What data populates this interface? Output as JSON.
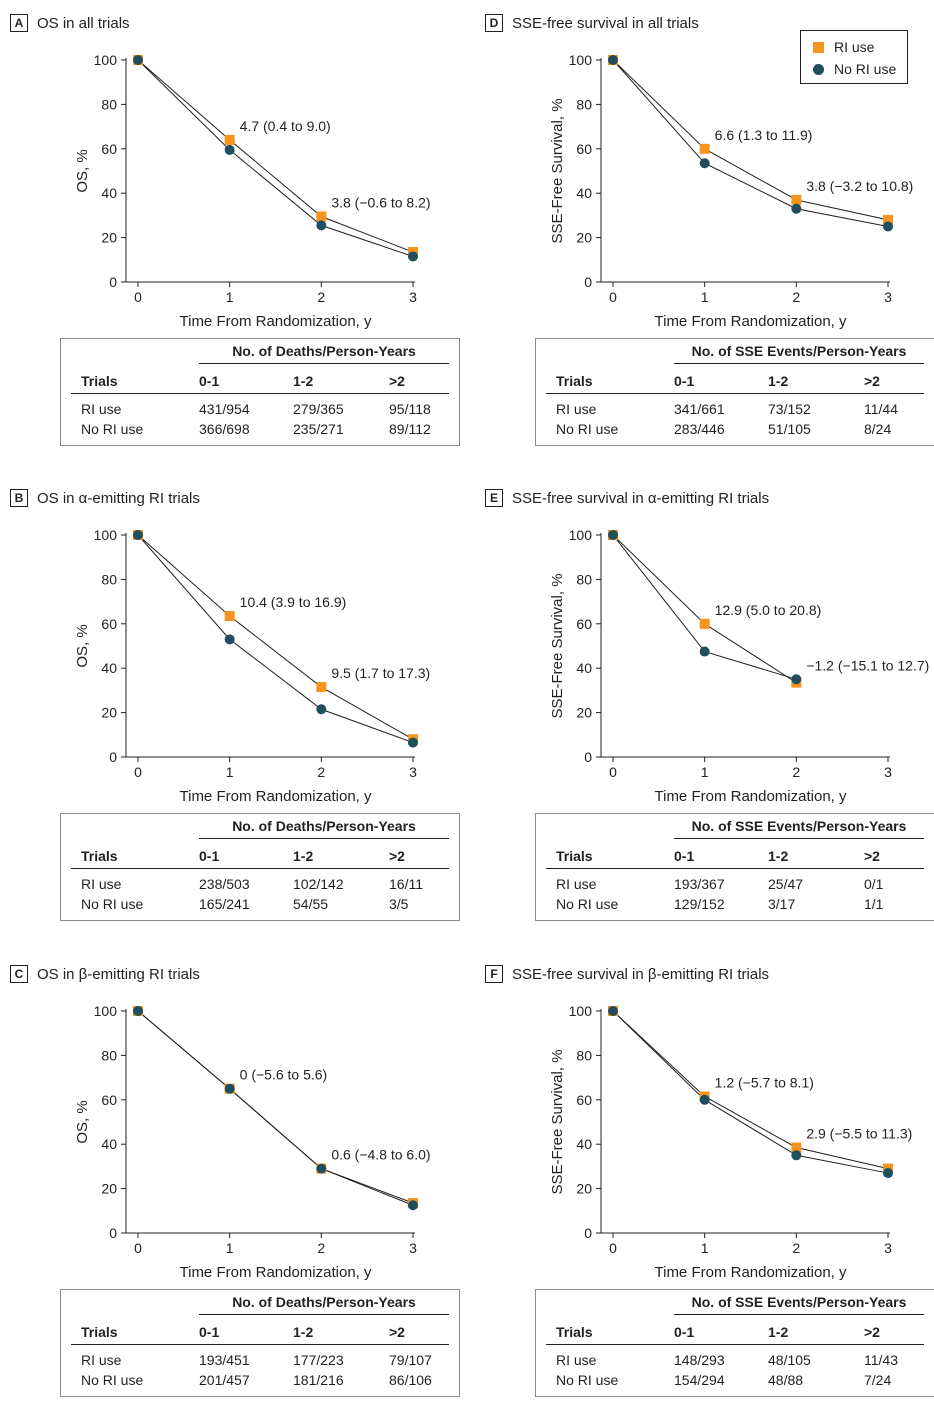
{
  "colors": {
    "ri_use": "#f7941d",
    "no_ri_use": "#1f4e5f",
    "line": "#231f20"
  },
  "legend": {
    "ri_use": "RI use",
    "no_ri_use": "No RI use"
  },
  "chart_data": [
    {
      "panel": "A",
      "type": "line",
      "title": "OS in all trials",
      "xlabel": "Time From Randomization, y",
      "ylabel": "OS, %",
      "x": [
        0,
        1,
        2,
        3
      ],
      "xlim": [
        0,
        3
      ],
      "ylim": [
        0,
        100
      ],
      "yticks": [
        0,
        20,
        40,
        60,
        80,
        100
      ],
      "series": [
        {
          "name": "RI use",
          "values": [
            100,
            64,
            29.5,
            13.5
          ]
        },
        {
          "name": "No RI use",
          "values": [
            100,
            59.5,
            25.5,
            11.5
          ]
        }
      ],
      "annotations": [
        {
          "text": "4.7 (0.4 to 9.0)",
          "x": 1,
          "y": 64
        },
        {
          "text": "3.8 (−0.6 to 8.2)",
          "x": 2,
          "y": 29.5
        }
      ],
      "table": {
        "header": "No. of Deaths/Person-Years",
        "columns": [
          "Trials",
          "0-1",
          "1-2",
          ">2"
        ],
        "rows": [
          [
            "RI use",
            "431/954",
            "279/365",
            "95/118"
          ],
          [
            "No RI use",
            "366/698",
            "235/271",
            "89/112"
          ]
        ]
      }
    },
    {
      "panel": "B",
      "type": "line",
      "title": "OS in α-emitting RI trials",
      "xlabel": "Time From Randomization, y",
      "ylabel": "OS, %",
      "x": [
        0,
        1,
        2,
        3
      ],
      "xlim": [
        0,
        3
      ],
      "ylim": [
        0,
        100
      ],
      "yticks": [
        0,
        20,
        40,
        60,
        80,
        100
      ],
      "series": [
        {
          "name": "RI use",
          "values": [
            100,
            63.5,
            31.5,
            8
          ]
        },
        {
          "name": "No RI use",
          "values": [
            100,
            53,
            21.5,
            6.5
          ]
        }
      ],
      "annotations": [
        {
          "text": "10.4 (3.9 to 16.9)",
          "x": 1,
          "y": 63.5
        },
        {
          "text": "9.5 (1.7 to 17.3)",
          "x": 2,
          "y": 31.5
        }
      ],
      "table": {
        "header": "No. of Deaths/Person-Years",
        "columns": [
          "Trials",
          "0-1",
          "1-2",
          ">2"
        ],
        "rows": [
          [
            "RI use",
            "238/503",
            "102/142",
            "16/11"
          ],
          [
            "No RI use",
            "165/241",
            "54/55",
            "3/5"
          ]
        ]
      }
    },
    {
      "panel": "C",
      "type": "line",
      "title": "OS in β-emitting RI trials",
      "xlabel": "Time From Randomization, y",
      "ylabel": "OS, %",
      "x": [
        0,
        1,
        2,
        3
      ],
      "xlim": [
        0,
        3
      ],
      "ylim": [
        0,
        100
      ],
      "yticks": [
        0,
        20,
        40,
        60,
        80,
        100
      ],
      "series": [
        {
          "name": "RI use",
          "values": [
            100,
            65,
            29,
            13.5
          ]
        },
        {
          "name": "No RI use",
          "values": [
            100,
            65,
            29,
            12.5
          ]
        }
      ],
      "annotations": [
        {
          "text": "0 (−5.6 to 5.6)",
          "x": 1,
          "y": 65
        },
        {
          "text": "0.6 (−4.8 to 6.0)",
          "x": 2,
          "y": 29
        }
      ],
      "table": {
        "header": "No. of Deaths/Person-Years",
        "columns": [
          "Trials",
          "0-1",
          "1-2",
          ">2"
        ],
        "rows": [
          [
            "RI use",
            "193/451",
            "177/223",
            "79/107"
          ],
          [
            "No RI use",
            "201/457",
            "181/216",
            "86/106"
          ]
        ]
      }
    },
    {
      "panel": "D",
      "type": "line",
      "title": "SSE-free survival in all trials",
      "xlabel": "Time From Randomization, y",
      "ylabel": "SSE-Free Survival, %",
      "x": [
        0,
        1,
        2,
        3
      ],
      "xlim": [
        0,
        3
      ],
      "ylim": [
        0,
        100
      ],
      "yticks": [
        0,
        20,
        40,
        60,
        80,
        100
      ],
      "series": [
        {
          "name": "RI use",
          "values": [
            100,
            60,
            37,
            28
          ]
        },
        {
          "name": "No RI use",
          "values": [
            100,
            53.5,
            33,
            25
          ]
        }
      ],
      "annotations": [
        {
          "text": "6.6 (1.3 to 11.9)",
          "x": 1,
          "y": 60
        },
        {
          "text": "3.8 (−3.2 to 10.8)",
          "x": 2,
          "y": 37
        }
      ],
      "table": {
        "header": "No. of SSE Events/Person-Years",
        "columns": [
          "Trials",
          "0-1",
          "1-2",
          ">2"
        ],
        "rows": [
          [
            "RI use",
            "341/661",
            "73/152",
            "11/44"
          ],
          [
            "No RI use",
            "283/446",
            "51/105",
            "8/24"
          ]
        ]
      }
    },
    {
      "panel": "E",
      "type": "line",
      "title": "SSE-free survival in α-emitting RI trials",
      "xlabel": "Time From Randomization, y",
      "ylabel": "SSE-Free Survival, %",
      "x": [
        0,
        1,
        2
      ],
      "xlim": [
        0,
        3
      ],
      "ylim": [
        0,
        100
      ],
      "yticks": [
        0,
        20,
        40,
        60,
        80,
        100
      ],
      "series": [
        {
          "name": "RI use",
          "values": [
            100,
            60,
            33.5
          ]
        },
        {
          "name": "No RI use",
          "values": [
            100,
            47.5,
            35
          ]
        }
      ],
      "annotations": [
        {
          "text": "12.9 (5.0 to 20.8)",
          "x": 1,
          "y": 60
        },
        {
          "text": "−1.2 (−15.1 to 12.7)",
          "x": 2,
          "y": 35
        }
      ],
      "table": {
        "header": "No. of SSE Events/Person-Years",
        "columns": [
          "Trials",
          "0-1",
          "1-2",
          ">2"
        ],
        "rows": [
          [
            "RI use",
            "193/367",
            "25/47",
            "0/1"
          ],
          [
            "No RI use",
            "129/152",
            "3/17",
            "1/1"
          ]
        ]
      }
    },
    {
      "panel": "F",
      "type": "line",
      "title": "SSE-free survival in β-emitting RI trials",
      "xlabel": "Time From Randomization, y",
      "ylabel": "SSE-Free Survival, %",
      "x": [
        0,
        1,
        2,
        3
      ],
      "xlim": [
        0,
        3
      ],
      "ylim": [
        0,
        100
      ],
      "yticks": [
        0,
        20,
        40,
        60,
        80,
        100
      ],
      "series": [
        {
          "name": "RI use",
          "values": [
            100,
            61.5,
            38.5,
            29
          ]
        },
        {
          "name": "No RI use",
          "values": [
            100,
            60,
            35,
            27
          ]
        }
      ],
      "annotations": [
        {
          "text": "1.2 (−5.7 to 8.1)",
          "x": 1,
          "y": 61.5
        },
        {
          "text": "2.9 (−5.5 to 11.3)",
          "x": 2,
          "y": 38.5
        }
      ],
      "table": {
        "header": "No. of SSE Events/Person-Years",
        "columns": [
          "Trials",
          "0-1",
          "1-2",
          ">2"
        ],
        "rows": [
          [
            "RI use",
            "148/293",
            "48/105",
            "11/43"
          ],
          [
            "No RI use",
            "154/294",
            "48/88",
            "7/24"
          ]
        ]
      }
    }
  ]
}
